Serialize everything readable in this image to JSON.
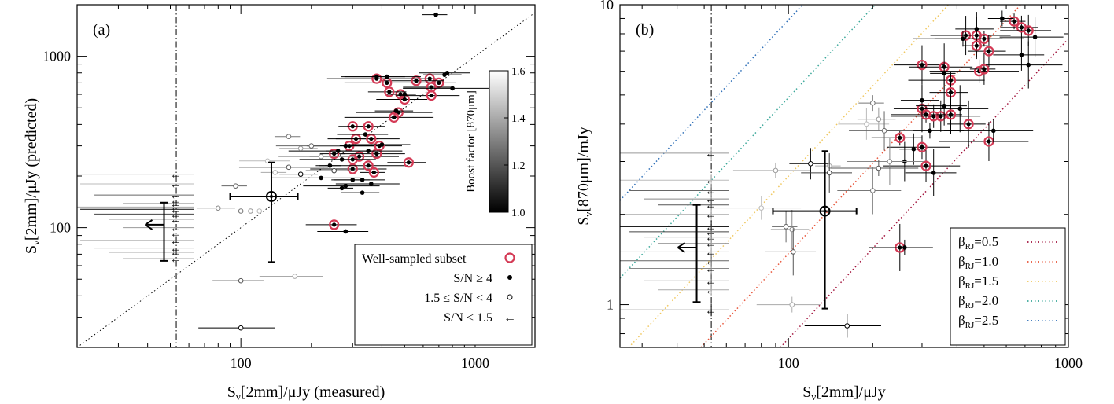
{
  "chart_data": [
    {
      "panel_label": "(a)",
      "type": "scatter",
      "xlabel": "Sν[2mm]/μJy (measured)",
      "ylabel": "Sν[2mm]/μJy (predicted)",
      "xscale": "log",
      "yscale": "log",
      "xlim": [
        20,
        1800
      ],
      "ylim": [
        20,
        2000
      ],
      "x_ticks": [
        "100",
        "1000"
      ],
      "y_ticks": [
        "100",
        "1000"
      ],
      "reference_lines": [
        {
          "kind": "one-to-one",
          "style": "dotted"
        },
        {
          "kind": "vertical",
          "x": 53,
          "style": "dash-dot"
        }
      ],
      "colorbar": {
        "label": "Boost factor [870μm]",
        "min": 1.0,
        "max": 1.6,
        "ticks": [
          "1.0",
          "1.2",
          "1.4",
          "1.6"
        ]
      },
      "legend": {
        "placement": "bottom-right",
        "entries": [
          "Well-sampled subset",
          "S/N ≥ 4",
          "1.5 ≤ S/N < 4",
          "S/N < 1.5"
        ]
      },
      "average_point": {
        "x": 135,
        "y": 152,
        "x_err": [
          90,
          175
        ],
        "y_err": [
          63,
          240
        ]
      },
      "upper_limit_marker": {
        "x": 47,
        "y": 104,
        "y_err": [
          64,
          140
        ]
      },
      "series": [
        {
          "name": "Well-sampled subset",
          "points": [
            [
              640,
              740
            ],
            [
              700,
              700
            ],
            [
              650,
              660
            ],
            [
              560,
              720
            ],
            [
              420,
              700
            ],
            [
              380,
              740
            ],
            [
              480,
              600
            ],
            [
              430,
              620
            ],
            [
              500,
              560
            ],
            [
              650,
              590
            ],
            [
              470,
              470
            ],
            [
              450,
              440
            ],
            [
              300,
              390
            ],
            [
              350,
              390
            ],
            [
              310,
              330
            ],
            [
              360,
              330
            ],
            [
              290,
              300
            ],
            [
              320,
              260
            ],
            [
              250,
              270
            ],
            [
              300,
              250
            ],
            [
              390,
              300
            ],
            [
              380,
              270
            ],
            [
              300,
              220
            ],
            [
              350,
              230
            ],
            [
              370,
              210
            ],
            [
              520,
              240
            ],
            [
              250,
              104
            ]
          ]
        },
        {
          "name": "S/N ≥ 4",
          "points": [
            [
              680,
              1750
            ],
            [
              740,
              780
            ],
            [
              760,
              800
            ],
            [
              380,
              760
            ],
            [
              420,
              760
            ],
            [
              800,
              650
            ],
            [
              500,
              600
            ],
            [
              460,
              480
            ],
            [
              340,
              350
            ],
            [
              280,
              300
            ],
            [
              350,
              280
            ],
            [
              260,
              280
            ],
            [
              240,
              230
            ],
            [
              300,
              190
            ],
            [
              330,
              190
            ],
            [
              360,
              180
            ],
            [
              280,
              175
            ],
            [
              220,
              195
            ],
            [
              270,
              170
            ],
            [
              330,
              160
            ],
            [
              280,
              95
            ],
            [
              400,
              305
            ],
            [
              270,
              250
            ]
          ]
        },
        {
          "name": "1.5 ≤ S/N < 4",
          "points": [
            [
              160,
              340
            ],
            [
              180,
              290
            ],
            [
              130,
              245
            ],
            [
              200,
              300
            ],
            [
              220,
              260
            ],
            [
              160,
              225
            ],
            [
              140,
              210
            ],
            [
              180,
              205
            ],
            [
              250,
              215
            ],
            [
              100,
              125
            ],
            [
              110,
              125
            ],
            [
              120,
              125
            ],
            [
              95,
              175
            ],
            [
              80,
              130
            ],
            [
              100,
              49
            ],
            [
              170,
              52
            ],
            [
              100,
              26
            ]
          ]
        },
        {
          "name": "S/N < 1.5",
          "points": [
            [
              53,
              205
            ],
            [
              53,
              180
            ],
            [
              53,
              155
            ],
            [
              53,
              145
            ],
            [
              53,
              138
            ],
            [
              53,
              132
            ],
            [
              53,
              128
            ],
            [
              53,
              120
            ],
            [
              53,
              112
            ],
            [
              53,
              100
            ],
            [
              53,
              93
            ],
            [
              53,
              84
            ],
            [
              53,
              76
            ],
            [
              53,
              72
            ],
            [
              53,
              66
            ]
          ]
        }
      ]
    },
    {
      "panel_label": "(b)",
      "type": "scatter",
      "xlabel": "Sν[2mm]/μJy",
      "ylabel": "Sν[870μm]/mJy",
      "xscale": "log",
      "yscale": "log",
      "xlim": [
        25,
        1000
      ],
      "ylim": [
        0.72,
        10
      ],
      "x_ticks": [
        "100",
        "1000"
      ],
      "y_ticks": [
        "1",
        "10"
      ],
      "reference_lines": [
        {
          "kind": "vertical",
          "x": 53,
          "style": "dash-dot"
        }
      ],
      "beta_lines": [
        {
          "label": "β",
          "sub": "RJ",
          "value": "=0.5",
          "color": "#a3153e",
          "ratio": 0.0077
        },
        {
          "label": "β",
          "sub": "RJ",
          "value": "=1.0",
          "color": "#e8553a",
          "ratio": 0.0148
        },
        {
          "label": "β",
          "sub": "RJ",
          "value": "=1.5",
          "color": "#f0c75e",
          "ratio": 0.0268
        },
        {
          "label": "β",
          "sub": "RJ",
          "value": "=2.0",
          "color": "#3ba89a",
          "ratio": 0.049
        },
        {
          "label": "β",
          "sub": "RJ",
          "value": "=2.5",
          "color": "#2e6fb8",
          "ratio": 0.089
        }
      ],
      "legend": {
        "placement": "bottom-right"
      },
      "average_point": {
        "x": 135,
        "y": 2.05,
        "x_err": [
          88,
          175
        ],
        "y_err": [
          0.97,
          3.25
        ]
      },
      "upper_limit_marker": {
        "x": 47,
        "y": 1.55,
        "y_err": [
          1.02,
          2.15
        ]
      },
      "series": [
        {
          "name": "Well-sampled subset",
          "points": [
            [
              640,
              8.8
            ],
            [
              680,
              8.4
            ],
            [
              720,
              8.2
            ],
            [
              430,
              7.9
            ],
            [
              470,
              7.9
            ],
            [
              500,
              7.7
            ],
            [
              470,
              7.3
            ],
            [
              520,
              7.0
            ],
            [
              300,
              6.3
            ],
            [
              360,
              6.2
            ],
            [
              380,
              5.6
            ],
            [
              480,
              6.0
            ],
            [
              500,
              6.1
            ],
            [
              380,
              5.1
            ],
            [
              300,
              4.5
            ],
            [
              310,
              4.3
            ],
            [
              330,
              4.25
            ],
            [
              350,
              4.25
            ],
            [
              380,
              4.3
            ],
            [
              440,
              4.0
            ],
            [
              250,
              3.6
            ],
            [
              300,
              3.35
            ],
            [
              310,
              2.9
            ],
            [
              520,
              3.5
            ],
            [
              250,
              1.55
            ]
          ]
        },
        {
          "name": "S/N ≥ 4",
          "points": [
            [
              580,
              9.0
            ],
            [
              470,
              8.3
            ],
            [
              680,
              6.8
            ],
            [
              760,
              7.8
            ],
            [
              720,
              6.3
            ],
            [
              420,
              7.7
            ],
            [
              360,
              5.9
            ],
            [
              300,
              4.8
            ],
            [
              360,
              4.6
            ],
            [
              410,
              4.5
            ],
            [
              320,
              3.8
            ],
            [
              540,
              3.8
            ],
            [
              280,
              3.3
            ],
            [
              260,
              3.0
            ],
            [
              330,
              2.75
            ],
            [
              260,
              1.55
            ]
          ]
        },
        {
          "name": "1.5 ≤ S/N < 4",
          "points": [
            [
              200,
              4.7
            ],
            [
              210,
              4.15
            ],
            [
              190,
              4.0
            ],
            [
              220,
              3.8
            ],
            [
              230,
              3.0
            ],
            [
              210,
              2.85
            ],
            [
              140,
              2.9
            ],
            [
              120,
              2.95
            ],
            [
              140,
              2.75
            ],
            [
              200,
              2.4
            ],
            [
              90,
              2.8
            ],
            [
              80,
              2.1
            ],
            [
              98,
              1.82
            ],
            [
              103,
              1.78
            ],
            [
              104,
              1.5
            ],
            [
              103,
              1.0
            ],
            [
              162,
              0.85
            ]
          ]
        },
        {
          "name": "S/N < 1.5",
          "points": [
            [
              53,
              3.2
            ],
            [
              53,
              2.6
            ],
            [
              53,
              2.4
            ],
            [
              53,
              2.25
            ],
            [
              53,
              2.15
            ],
            [
              53,
              2.0
            ],
            [
              53,
              1.82
            ],
            [
              53,
              1.75
            ],
            [
              53,
              1.68
            ],
            [
              53,
              1.6
            ],
            [
              53,
              1.5
            ],
            [
              53,
              1.4
            ],
            [
              53,
              1.32
            ],
            [
              53,
              1.2
            ],
            [
              53,
              1.12
            ],
            [
              53,
              0.96
            ]
          ]
        }
      ]
    }
  ]
}
